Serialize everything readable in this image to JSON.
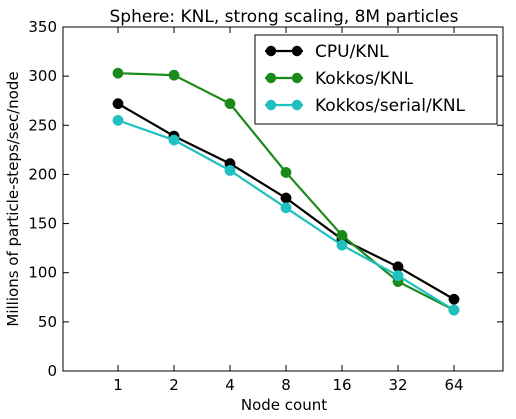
{
  "chart_data": {
    "type": "line",
    "title": "Sphere: KNL, strong scaling, 8M particles",
    "xlabel": "Node count",
    "ylabel": "Millions of particle-steps/sec/node",
    "categories": [
      "1",
      "2",
      "4",
      "8",
      "16",
      "32",
      "64"
    ],
    "ylim": [
      0,
      350
    ],
    "yticks": [
      "0",
      "50",
      "100",
      "150",
      "200",
      "250",
      "300",
      "350"
    ],
    "legend_position": "top-right",
    "grid": false,
    "series": [
      {
        "name": "CPU/KNL",
        "color": "#000000",
        "values": [
          272,
          239,
          211,
          176,
          134,
          106,
          73
        ]
      },
      {
        "name": "Kokkos/KNL",
        "color": "#1a8a1a",
        "values": [
          303,
          301,
          272,
          202,
          138,
          91,
          62
        ]
      },
      {
        "name": "Kokkos/serial/KNL",
        "color": "#20c0c0",
        "values": [
          255,
          235,
          204,
          166,
          128,
          97,
          62
        ]
      }
    ]
  }
}
